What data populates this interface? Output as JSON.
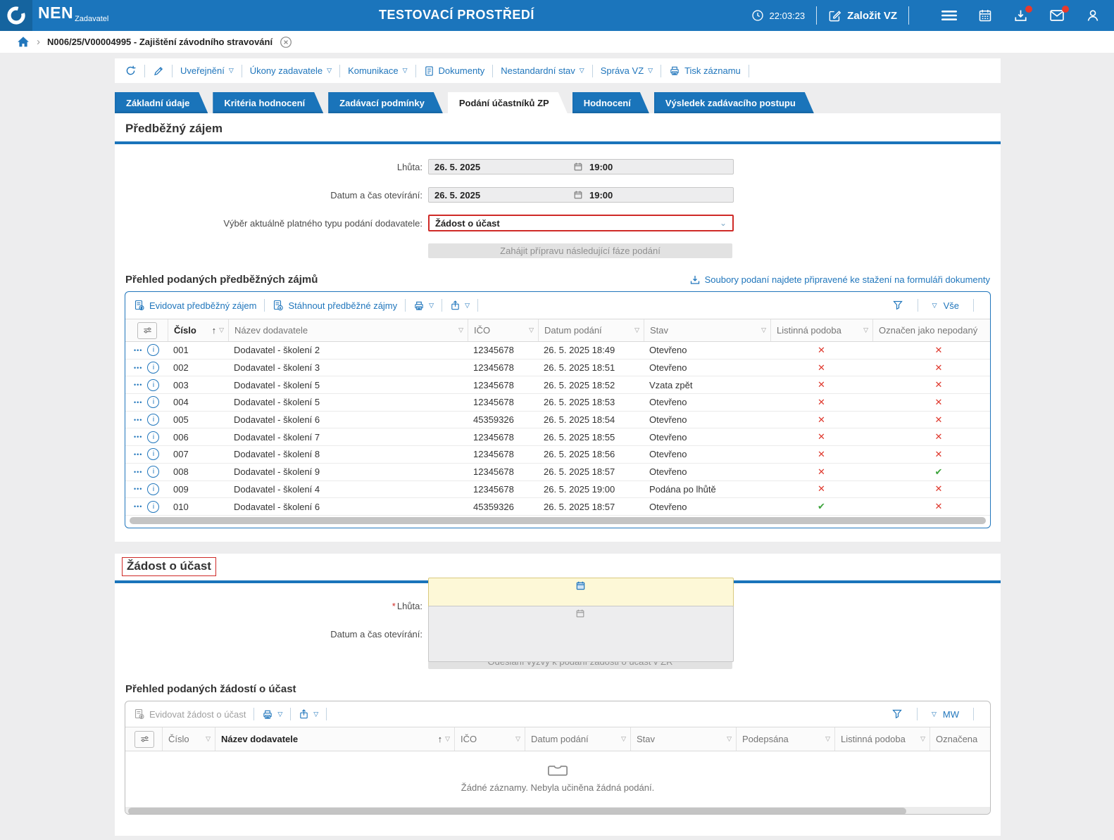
{
  "colors": {
    "header_blue": "#1b75bc",
    "accent_blue": "#2076bc",
    "tab_blue": "#1a74ba",
    "red": "#df382d",
    "green": "#3da43c",
    "required_red": "#cf2a27"
  },
  "icons": {
    "filter_triangle": "▽",
    "sort_asc": "↑",
    "row_menu_dots": "•••",
    "cross_mark": "✕",
    "check_mark": "✔",
    "select_chevron": "⌄",
    "info_letter": "i",
    "breadcrumb_chevron": "›"
  },
  "header": {
    "brand": "NEN",
    "brand_sub": "Zadavatel",
    "env_title": "TESTOVACÍ PROSTŘEDÍ",
    "time": "22:03:23",
    "new_vz_label": "Založit VZ"
  },
  "breadcrumb": {
    "item": "N006/25/V00004995 - Zajištění závodního stravování"
  },
  "action_toolbar": {
    "menus": [
      {
        "label": "Uveřejnění",
        "dropdown": true,
        "icon": null
      },
      {
        "label": "Úkony zadavatele",
        "dropdown": true,
        "icon": null
      },
      {
        "label": "Komunikace",
        "dropdown": true,
        "icon": null
      },
      {
        "label": "Dokumenty",
        "dropdown": false,
        "icon": "document"
      },
      {
        "label": "Nestandardní stav",
        "dropdown": true,
        "icon": null
      },
      {
        "label": "Správa VZ",
        "dropdown": true,
        "icon": null
      },
      {
        "label": "Tisk záznamu",
        "dropdown": false,
        "icon": "printer"
      }
    ]
  },
  "tabs": [
    {
      "label": "Základní údaje",
      "active": false
    },
    {
      "label": "Kritéria hodnocení",
      "active": false
    },
    {
      "label": "Zadávací podmínky",
      "active": false
    },
    {
      "label": "Podání účastníků ZP",
      "active": true
    },
    {
      "label": "Hodnocení",
      "active": false
    },
    {
      "label": "Výsledek zadávacího postupu",
      "active": false
    }
  ],
  "prelim_section": {
    "title": "Předběžný zájem",
    "deadline_label": "Lhůta:",
    "deadline_date": "26. 5. 2025",
    "deadline_time": "19:00",
    "opening_label": "Datum a čas otevírání:",
    "opening_date": "26. 5. 2025",
    "opening_time": "19:00",
    "type_label": "Výběr aktuálně platného typu podání dodavatele:",
    "type_value": "Žádost o účast",
    "phase_button": "Zahájit přípravu následující fáze podání",
    "table_heading": "Přehled podaných předběžných zájmů",
    "download_link": "Soubory podaní najdete připravené ke stažení na formuláři dokumenty"
  },
  "prelim_table": {
    "toolbar": {
      "button1": "Evidovat předběžný zájem",
      "button2": "Stáhnout předběžné zájmy",
      "filter_label": "Vše"
    },
    "columns": [
      "Číslo",
      "Název dodavatele",
      "IČO",
      "Datum podání",
      "Stav",
      "Listinná podoba",
      "Označen jako nepodaný"
    ],
    "sorted_column": "Číslo",
    "rows": [
      {
        "num": "001",
        "name": "Dodavatel - školení 2",
        "ico": "12345678",
        "date": "26. 5. 2025 18:49",
        "status": "Otevřeno",
        "listinna": "cross",
        "nepodany": "cross"
      },
      {
        "num": "002",
        "name": "Dodavatel - školení 3",
        "ico": "12345678",
        "date": "26. 5. 2025 18:51",
        "status": "Otevřeno",
        "listinna": "cross",
        "nepodany": "cross"
      },
      {
        "num": "003",
        "name": "Dodavatel - školení 5",
        "ico": "12345678",
        "date": "26. 5. 2025 18:52",
        "status": "Vzata zpět",
        "listinna": "cross",
        "nepodany": "cross"
      },
      {
        "num": "004",
        "name": "Dodavatel - školení 5",
        "ico": "12345678",
        "date": "26. 5. 2025 18:53",
        "status": "Otevřeno",
        "listinna": "cross",
        "nepodany": "cross"
      },
      {
        "num": "005",
        "name": "Dodavatel - školení 6",
        "ico": "45359326",
        "date": "26. 5. 2025 18:54",
        "status": "Otevřeno",
        "listinna": "cross",
        "nepodany": "cross"
      },
      {
        "num": "006",
        "name": "Dodavatel - školení 7",
        "ico": "12345678",
        "date": "26. 5. 2025 18:55",
        "status": "Otevřeno",
        "listinna": "cross",
        "nepodany": "cross"
      },
      {
        "num": "007",
        "name": "Dodavatel - školení 8",
        "ico": "12345678",
        "date": "26. 5. 2025 18:56",
        "status": "Otevřeno",
        "listinna": "cross",
        "nepodany": "cross"
      },
      {
        "num": "008",
        "name": "Dodavatel - školení 9",
        "ico": "12345678",
        "date": "26. 5. 2025 18:57",
        "status": "Otevřeno",
        "listinna": "cross",
        "nepodany": "check"
      },
      {
        "num": "009",
        "name": "Dodavatel - školení 4",
        "ico": "12345678",
        "date": "26. 5. 2025 19:00",
        "status": "Podána po lhůtě",
        "listinna": "cross",
        "nepodany": "cross"
      },
      {
        "num": "010",
        "name": "Dodavatel - školení 6",
        "ico": "45359326",
        "date": "26. 5. 2025 18:57",
        "status": "Otevřeno",
        "listinna": "check",
        "nepodany": "cross"
      }
    ]
  },
  "request_section": {
    "title": "Žádost o účast",
    "required_mark": "*",
    "deadline_label": "Lhůta:",
    "opening_label": "Datum a čas otevírání:",
    "send_button": "Odeslání výzvy k podání žádosti o účast v ZŘ",
    "table_heading": "Přehled podaných žádostí o účast"
  },
  "request_table": {
    "toolbar": {
      "button1": "Evidovat žádost o účast",
      "filter_label": "MW"
    },
    "columns": [
      "Číslo",
      "Název dodavatele",
      "IČO",
      "Datum podání",
      "Stav",
      "Podepsána",
      "Listinná podoba",
      "Označena"
    ],
    "sorted_column": "Název dodavatele",
    "empty_text": "Žádné záznamy. Nebyla učiněna žádná podání."
  }
}
